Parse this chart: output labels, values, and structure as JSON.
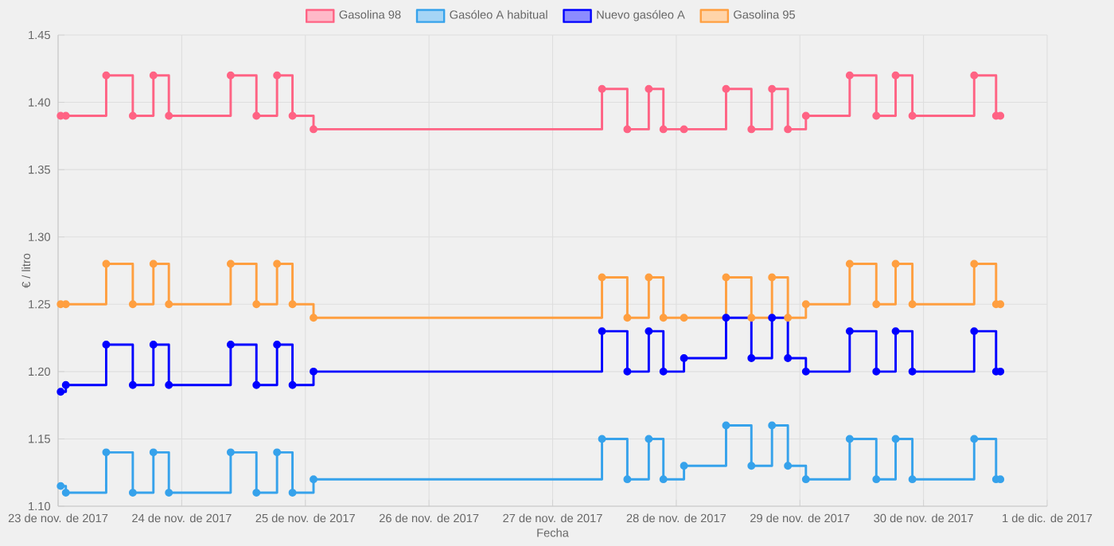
{
  "chart_data": {
    "type": "step",
    "xlabel": "Fecha",
    "ylabel": "€ / litro",
    "legend": "top",
    "grid": true,
    "marker": "circle",
    "line_style": "solid",
    "x": [
      "2017-11-23T00:30",
      "2017-11-23T01:30",
      "2017-11-23T09:20",
      "2017-11-23T14:30",
      "2017-11-23T18:30",
      "2017-11-23T21:30",
      "2017-11-24T09:30",
      "2017-11-24T14:30",
      "2017-11-24T18:30",
      "2017-11-24T21:30",
      "2017-11-25T01:35",
      "2017-11-27T09:35",
      "2017-11-27T14:30",
      "2017-11-27T18:40",
      "2017-11-27T21:30",
      "2017-11-28T01:30",
      "2017-11-28T09:40",
      "2017-11-28T14:35",
      "2017-11-28T18:35",
      "2017-11-28T21:40",
      "2017-11-29T01:10",
      "2017-11-29T09:40",
      "2017-11-29T14:50",
      "2017-11-29T18:35",
      "2017-11-29T21:50",
      "2017-11-30T09:50",
      "2017-11-30T14:05",
      "2017-11-30T14:55"
    ],
    "xlim": [
      "2017-11-23",
      "2017-12-01"
    ],
    "xticks": [
      {
        "value": "2017-11-23",
        "label": "23 de nov. de 2017"
      },
      {
        "value": "2017-11-24",
        "label": "24 de nov. de 2017"
      },
      {
        "value": "2017-11-25",
        "label": "25 de nov. de 2017"
      },
      {
        "value": "2017-11-26",
        "label": "26 de nov. de 2017"
      },
      {
        "value": "2017-11-27",
        "label": "27 de nov. de 2017"
      },
      {
        "value": "2017-11-28",
        "label": "28 de nov. de 2017"
      },
      {
        "value": "2017-11-29",
        "label": "29 de nov. de 2017"
      },
      {
        "value": "2017-11-30",
        "label": "30 de nov. de 2017"
      },
      {
        "value": "2017-12-01",
        "label": "1 de dic. de 2017"
      }
    ],
    "ylim": [
      1.1,
      1.45
    ],
    "yticks": [
      {
        "value": 1.1,
        "label": "1.10"
      },
      1.15,
      {
        "value": 1.2,
        "label": "1.20"
      },
      1.25,
      {
        "value": 1.3,
        "label": "1.30"
      },
      1.35,
      {
        "value": 1.4,
        "label": "1.40"
      },
      1.45
    ],
    "series": [
      {
        "name": "Gasolina 98",
        "color": "#ff6384",
        "values": [
          1.39,
          1.39,
          1.42,
          1.39,
          1.42,
          1.39,
          1.42,
          1.39,
          1.42,
          1.39,
          1.38,
          1.41,
          1.38,
          1.41,
          1.38,
          1.38,
          1.41,
          1.38,
          1.41,
          1.38,
          1.39,
          1.42,
          1.39,
          1.42,
          1.39,
          1.42,
          1.39,
          1.39
        ]
      },
      {
        "name": "Gasóleo A habitual",
        "color": "#36a2eb",
        "values": [
          1.115,
          1.11,
          1.14,
          1.11,
          1.14,
          1.11,
          1.14,
          1.11,
          1.14,
          1.11,
          1.12,
          1.15,
          1.12,
          1.15,
          1.12,
          1.13,
          1.16,
          1.13,
          1.16,
          1.13,
          1.12,
          1.15,
          1.12,
          1.15,
          1.12,
          1.15,
          1.12,
          1.12
        ]
      },
      {
        "name": "Nuevo gasóleo A",
        "color": "#0000ff",
        "values": [
          1.185,
          1.19,
          1.22,
          1.19,
          1.22,
          1.19,
          1.22,
          1.19,
          1.22,
          1.19,
          1.2,
          1.23,
          1.2,
          1.23,
          1.2,
          1.21,
          1.24,
          1.21,
          1.24,
          1.21,
          1.2,
          1.23,
          1.2,
          1.23,
          1.2,
          1.23,
          1.2,
          1.2
        ]
      },
      {
        "name": "Gasolina 95",
        "color": "#ff9f40",
        "values": [
          1.25,
          1.25,
          1.28,
          1.25,
          1.28,
          1.25,
          1.28,
          1.25,
          1.28,
          1.25,
          1.24,
          1.27,
          1.24,
          1.27,
          1.24,
          1.24,
          1.27,
          1.24,
          1.27,
          1.24,
          1.25,
          1.28,
          1.25,
          1.28,
          1.25,
          1.28,
          1.25,
          1.25
        ]
      }
    ]
  }
}
